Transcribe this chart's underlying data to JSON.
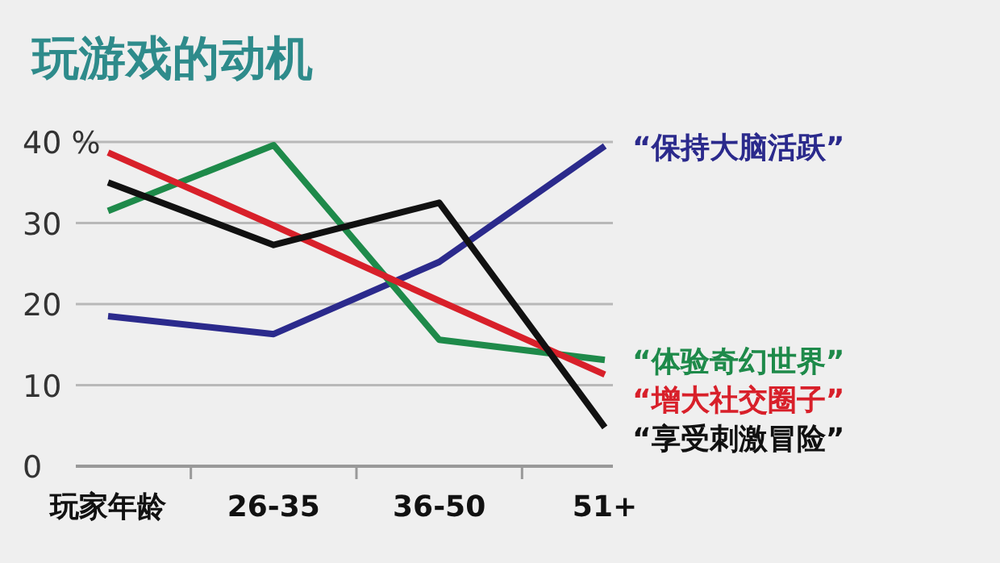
{
  "chart_data": {
    "type": "line",
    "title": "玩游戏的动机",
    "categories": [
      "玩家年龄",
      "26-35",
      "36-50",
      "51+"
    ],
    "ylim": [
      0,
      40
    ],
    "yticks": [
      0,
      10,
      20,
      30,
      {
        "value": 40,
        "label": "40 %"
      }
    ],
    "grid": "y",
    "marker": "none",
    "line_style": "solid",
    "series": [
      {
        "name": "“保持大脑活跃”",
        "color": "#2b2a8c",
        "values": [
          18.5,
          16.3,
          25.2,
          39.5
        ]
      },
      {
        "name": "“体验奇幻世界”",
        "color": "#1e8a4a",
        "values": [
          31.5,
          39.6,
          15.6,
          13.1
        ]
      },
      {
        "name": "“增大社交圈子”",
        "color": "#d8202a",
        "values": [
          38.7,
          29.7,
          20.4,
          11.3
        ]
      },
      {
        "name": "“享受刺激冒险”",
        "color": "#111111",
        "values": [
          35,
          27.3,
          32.5,
          4.8
        ]
      }
    ]
  }
}
